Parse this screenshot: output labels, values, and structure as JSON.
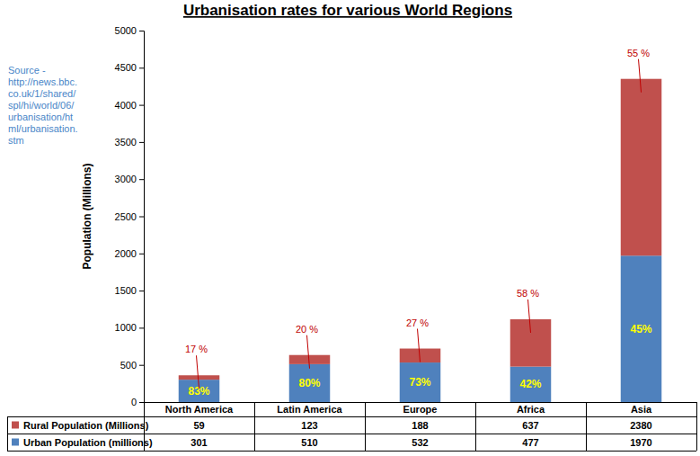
{
  "chart_data": {
    "type": "bar",
    "title": "Urbanisation rates for various World Regions",
    "source": "Source - http://news.bbc.co.uk/1/shared/spl/hi/world/06/urbanisation/html/urbanisation.stm",
    "y_label": "Population (Millions)",
    "categories": [
      "North America",
      "Latin America",
      "Europe",
      "Africa",
      "Asia"
    ],
    "series": [
      {
        "name": "Urban Population (millions)",
        "color": "#4f81bd",
        "values": [
          301,
          510,
          532,
          477,
          1970
        ],
        "share_labels": [
          "83%",
          "80%",
          "73%",
          "42%",
          "45%"
        ]
      },
      {
        "name": "Rural Population (Millions)",
        "color": "#c0504d",
        "values": [
          59,
          123,
          188,
          637,
          2380
        ],
        "share_labels": [
          "17 %",
          "20 %",
          "27 %",
          "58 %",
          "55 %"
        ]
      }
    ],
    "ylim": [
      0,
      5000
    ],
    "yticks": [
      0,
      500,
      1000,
      1500,
      2000,
      2500,
      3000,
      3500,
      4000,
      4500,
      5000
    ],
    "stacked": true,
    "grid": false
  }
}
